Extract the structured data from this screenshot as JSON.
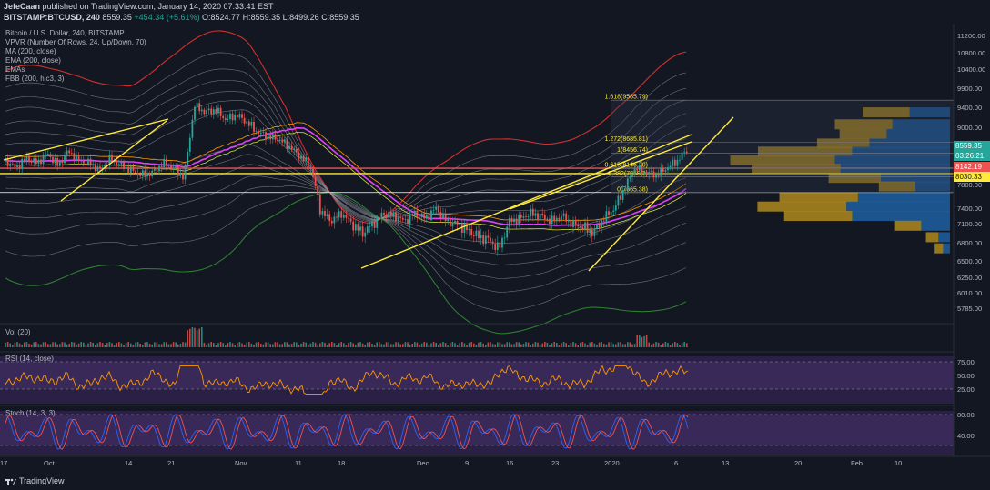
{
  "header": {
    "publisher": "JefeCaan",
    "published_text": "published on TradingView.com, January 14, 2020 07:33:41 EST",
    "symbol": "BITSTAMP:BTCUSD, 240",
    "last": "8559.35",
    "change": "+454.34 (+5.61%)",
    "open": "O:8524.77",
    "high": "H:8559.35",
    "low": "L:8499.26",
    "close": "C:8559.35"
  },
  "indicators": {
    "title": "Bitcoin / U.S. Dollar, 240, BITSTAMP",
    "vpvr": "VPVR (Number Of Rows, 24, Up/Down, 70)",
    "ma": "MA (200, close)",
    "ema": "EMA (200, close)",
    "emas": "EMAs",
    "fbb": "FBB (200, hlc3, 3)",
    "vol": "Vol (20)",
    "rsi": "RSI (14, close)",
    "stoch": "Stoch (14, 3, 3)"
  },
  "footer": {
    "brand": "TradingView"
  },
  "colors": {
    "background": "#131722",
    "candle_up": "#26a69a",
    "candle_down": "#ef5350",
    "trendline": "#ffeb3b",
    "ma": "#e040fb",
    "fbb_upper": "#d32f2f",
    "fbb_lower": "#2e7d32",
    "rsi": "#ff9800",
    "stoch_k": "#2962ff",
    "stoch_d": "#ef5350",
    "osc_band": "#4a2a6e"
  },
  "chart_data": {
    "type": "candlestick",
    "price_axis_ticks": [
      11200,
      10800,
      10400,
      9900,
      9400,
      9000,
      8600,
      8200,
      7800,
      7400,
      7100,
      6800,
      6500,
      6250,
      6010,
      5785
    ],
    "price_axis_labels": [
      "11200.00",
      "10800.00",
      "10400.00",
      "9900.00",
      "9400.00",
      "9000.00",
      "8600.00",
      "8200.00",
      "7800.00",
      "7400.00",
      "7100.00",
      "6800.00",
      "6500.00",
      "6250.00",
      "6010.00",
      "5785.00"
    ],
    "time_axis_labels": [
      "Oct",
      "14",
      "21",
      "Nov",
      "11",
      "18",
      "Dec",
      "9",
      "16",
      "23",
      "2020",
      "6",
      "13",
      "20",
      "Feb",
      "10",
      "17"
    ],
    "price_tags": [
      {
        "label": "8559.35",
        "value": 8559.35,
        "color": "#26a69a"
      },
      {
        "label": "03:26:21",
        "value": 8500,
        "color": "#26a69a"
      },
      {
        "label": "8142.19",
        "value": 8142.19,
        "color": "#ef5350"
      },
      {
        "label": "8030.33",
        "value": 8030.33,
        "color": "#ffeb3b"
      }
    ],
    "fib_levels": [
      {
        "label": "1.618(9585.79)",
        "value": 9585.79
      },
      {
        "label": "1.272(8685.81)",
        "value": 8685.81
      },
      {
        "label": "1(8456.74)",
        "value": 8456.74
      },
      {
        "label": "0.618(8146.20)",
        "value": 8146.2
      },
      {
        "label": "0.382(7958.2)",
        "value": 7958.2
      },
      {
        "label": "0(7665.38)",
        "value": 7665.38
      }
    ],
    "horizontal_levels": [
      8142.19,
      8030.33,
      7665.38
    ],
    "rsi_axis_labels": [
      "75.00",
      "50.00",
      "25.00"
    ],
    "rsi_levels": [
      70,
      30
    ],
    "stoch_axis_labels": [
      "80.00",
      "40.00"
    ],
    "stoch_levels": [
      80,
      20
    ],
    "price_path": [
      8300,
      8150,
      8350,
      8250,
      8450,
      8200,
      8500,
      8300,
      8250,
      8100,
      8350,
      8200,
      8100,
      8000,
      8050,
      8250,
      8150,
      7950,
      9450,
      9300,
      9350,
      9150,
      9250,
      9100,
      8900,
      8800,
      8750,
      8600,
      8400,
      8200,
      7350,
      7150,
      7300,
      7100,
      6950,
      7100,
      7300,
      7250,
      7150,
      7300,
      7200,
      7400,
      7150,
      7100,
      7000,
      6900,
      6850,
      6700,
      7150,
      7200,
      7300,
      7250,
      7150,
      7250,
      7100,
      7050,
      6950,
      7200,
      7400,
      7750,
      8150,
      8050,
      8000,
      8150,
      8300,
      8559
    ],
    "volume_profile": [
      {
        "price": 9290,
        "up": 0.45,
        "down": 0.35
      },
      {
        "price": 9050,
        "up": 0.55,
        "down": 0.5
      },
      {
        "price": 8850,
        "up": 0.45,
        "down": 0.55
      },
      {
        "price": 8650,
        "up": 0.5,
        "down": 0.7
      },
      {
        "price": 8480,
        "up": 0.9,
        "down": 0.85
      },
      {
        "price": 8300,
        "up": 1.0,
        "down": 1.0
      },
      {
        "price": 8120,
        "up": 0.85,
        "down": 0.95
      },
      {
        "price": 7930,
        "up": 0.5,
        "down": 0.6
      },
      {
        "price": 7760,
        "up": 0.35,
        "down": 0.3
      },
      {
        "price": 7580,
        "up": 0.75,
        "down": 0.8
      },
      {
        "price": 7420,
        "up": 0.85,
        "down": 0.9
      },
      {
        "price": 7240,
        "up": 0.65,
        "down": 0.85
      },
      {
        "price": 7060,
        "up": 0.25,
        "down": 0.25
      },
      {
        "price": 6880,
        "up": 0.12,
        "down": 0.1
      },
      {
        "price": 6700,
        "up": 0.08,
        "down": 0.06
      }
    ]
  }
}
